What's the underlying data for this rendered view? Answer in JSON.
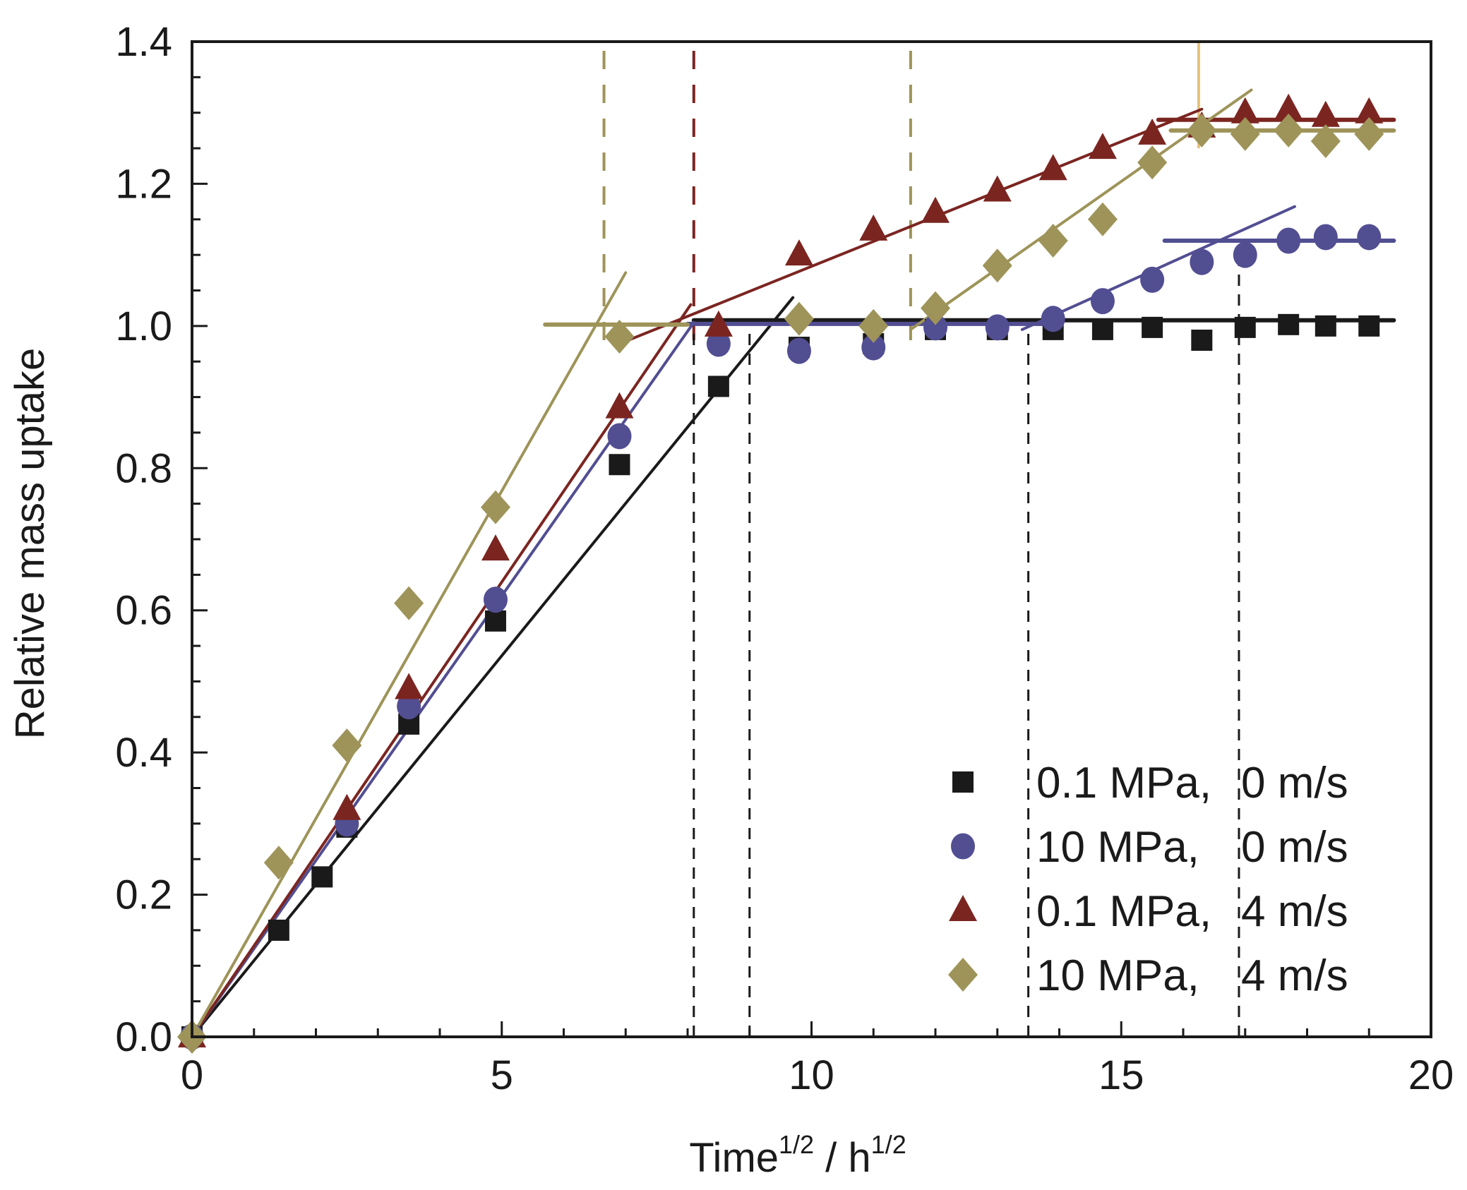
{
  "chart_data": {
    "type": "scatter",
    "title": "",
    "xlabel": "Time",
    "xlabel_sup": "1/2",
    "xlabel_sep": " / h",
    "xlabel_sup2": "1/2",
    "ylabel": "Relative mass uptake",
    "xlim": [
      0,
      20
    ],
    "ylim": [
      0,
      1.4
    ],
    "xticks": [
      0,
      5,
      10,
      15,
      20
    ],
    "xtick_labels": [
      "0",
      "5",
      "10",
      "15",
      "20"
    ],
    "x_minor_step": 1,
    "yticks": [
      0.0,
      0.2,
      0.4,
      0.6,
      0.8,
      1.0,
      1.2,
      1.4
    ],
    "ytick_labels": [
      "0.0",
      "0.2",
      "0.4",
      "0.6",
      "0.8",
      "1.0",
      "1.2",
      "1.4"
    ],
    "y_minor_step": 0.05,
    "grid": false,
    "legend_position": "bottom-right",
    "series": [
      {
        "name": "0.1 MPa, 0 m/s",
        "legend_left": "0.1 MPa,",
        "legend_right": "0 m/s",
        "marker": "square",
        "color": "#1a1a1a",
        "points": [
          [
            0,
            0
          ],
          [
            1.4,
            0.15
          ],
          [
            2.1,
            0.225
          ],
          [
            2.5,
            0.295
          ],
          [
            3.5,
            0.44
          ],
          [
            4.9,
            0.585
          ],
          [
            6.9,
            0.805
          ],
          [
            8.5,
            0.915
          ],
          [
            9.8,
            0.97
          ],
          [
            11,
            0.975
          ],
          [
            12,
            0.995
          ],
          [
            13,
            0.995
          ],
          [
            13.9,
            0.995
          ],
          [
            14.7,
            0.995
          ],
          [
            15.5,
            0.998
          ],
          [
            16.3,
            0.98
          ],
          [
            17,
            0.998
          ],
          [
            17.7,
            1.002
          ],
          [
            18.3,
            1.0
          ],
          [
            19,
            1.0
          ]
        ],
        "fit_lines": [
          [
            [
              0,
              0
            ],
            [
              9.7,
              1.04
            ]
          ],
          [
            [
              8.1,
              1.008
            ],
            [
              19.4,
              1.008
            ]
          ]
        ]
      },
      {
        "name": "10 MPa, 0 m/s",
        "legend_left": "10 MPa,",
        "legend_right": "0 m/s",
        "marker": "circle",
        "color": "#524e92",
        "points": [
          [
            0,
            0
          ],
          [
            2.5,
            0.3
          ],
          [
            3.5,
            0.465
          ],
          [
            4.9,
            0.615
          ],
          [
            6.9,
            0.845
          ],
          [
            8.5,
            0.975
          ],
          [
            9.8,
            0.965
          ],
          [
            11,
            0.97
          ],
          [
            12,
            0.998
          ],
          [
            13,
            0.998
          ],
          [
            13.9,
            1.01
          ],
          [
            14.7,
            1.035
          ],
          [
            15.5,
            1.065
          ],
          [
            16.3,
            1.09
          ],
          [
            17,
            1.1
          ],
          [
            17.7,
            1.12
          ],
          [
            18.3,
            1.125
          ],
          [
            19,
            1.125
          ]
        ],
        "fit_lines": [
          [
            [
              0,
              0
            ],
            [
              8.1,
              1.005
            ]
          ],
          [
            [
              8.0,
              1.003
            ],
            [
              14.0,
              1.003
            ]
          ],
          [
            [
              13.4,
              0.995
            ],
            [
              17.8,
              1.168
            ]
          ],
          [
            [
              15.7,
              1.12
            ],
            [
              19.4,
              1.12
            ]
          ]
        ]
      },
      {
        "name": "0.1 MPa, 4 m/s",
        "legend_left": "0.1 MPa,",
        "legend_right": "4 m/s",
        "marker": "triangle",
        "color": "#7b2521",
        "points": [
          [
            0,
            0
          ],
          [
            2.5,
            0.32
          ],
          [
            3.5,
            0.49
          ],
          [
            4.9,
            0.685
          ],
          [
            6.9,
            0.885
          ],
          [
            8.5,
            1.0
          ],
          [
            9.8,
            1.1
          ],
          [
            11,
            1.135
          ],
          [
            12,
            1.16
          ],
          [
            13,
            1.19
          ],
          [
            13.9,
            1.22
          ],
          [
            14.7,
            1.25
          ],
          [
            15.5,
            1.27
          ],
          [
            16.3,
            1.28
          ],
          [
            17,
            1.3
          ],
          [
            17.7,
            1.305
          ],
          [
            18.3,
            1.295
          ],
          [
            19,
            1.3
          ]
        ],
        "fit_lines": [
          [
            [
              0,
              0
            ],
            [
              8.05,
              1.03
            ]
          ],
          [
            [
              6.9,
              0.975
            ],
            [
              16.3,
              1.305
            ]
          ],
          [
            [
              15.6,
              1.29
            ],
            [
              19.4,
              1.29
            ]
          ]
        ]
      },
      {
        "name": "10 MPa, 4 m/s",
        "legend_left": "10 MPa,",
        "legend_right": "4 m/s",
        "marker": "diamond",
        "color": "#9e9459",
        "points": [
          [
            0,
            0
          ],
          [
            1.4,
            0.245
          ],
          [
            2.5,
            0.41
          ],
          [
            3.5,
            0.61
          ],
          [
            4.9,
            0.745
          ],
          [
            6.9,
            0.985
          ],
          [
            9.8,
            1.01
          ],
          [
            11,
            1.0
          ],
          [
            12,
            1.025
          ],
          [
            13,
            1.085
          ],
          [
            13.9,
            1.12
          ],
          [
            14.7,
            1.15
          ],
          [
            15.5,
            1.23
          ],
          [
            16.3,
            1.275
          ],
          [
            17,
            1.27
          ],
          [
            17.7,
            1.275
          ],
          [
            18.3,
            1.26
          ],
          [
            19,
            1.27
          ]
        ],
        "fit_lines": [
          [
            [
              0,
              0
            ],
            [
              7.0,
              1.075
            ]
          ],
          [
            [
              5.7,
              1.002
            ],
            [
              8.0,
              1.002
            ]
          ],
          [
            [
              11.6,
              0.995
            ],
            [
              17.1,
              1.332
            ]
          ],
          [
            [
              15.8,
              1.275
            ],
            [
              19.4,
              1.275
            ]
          ]
        ]
      }
    ],
    "reference_lines": [
      {
        "x": 6.65,
        "color": "#9e9459",
        "style": "dashed",
        "from": 0.98,
        "to": 1.4
      },
      {
        "x": 8.1,
        "color": "#7b2521",
        "style": "dashed",
        "from": 0.98,
        "to": 1.4
      },
      {
        "x": 11.6,
        "color": "#9e9459",
        "style": "dashed",
        "from": 0.98,
        "to": 1.4
      },
      {
        "x": 16.25,
        "color": "#e8c27a",
        "style": "solid",
        "from": 1.25,
        "to": 1.4
      },
      {
        "x": 8.1,
        "color": "#1a1a1a",
        "style": "dashed",
        "from": 0,
        "to": 1.0
      },
      {
        "x": 9.0,
        "color": "#1a1a1a",
        "style": "dashed",
        "from": 0,
        "to": 1.0
      },
      {
        "x": 13.5,
        "color": "#1a1a1a",
        "style": "dashed",
        "from": 0,
        "to": 1.0
      },
      {
        "x": 16.9,
        "color": "#1a1a1a",
        "style": "dashed",
        "from": 0,
        "to": 1.1
      }
    ]
  }
}
